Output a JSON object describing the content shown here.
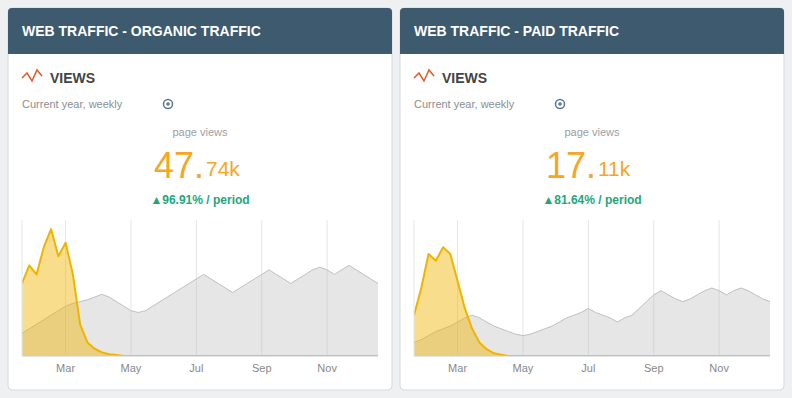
{
  "chart_data": [
    {
      "type": "area",
      "title": "WEB TRAFFIC - ORGANIC TRAFFIC",
      "subtitle": "VIEWS",
      "annotations": [
        "Current year, weekly",
        "page views",
        "47.",
        "74k",
        "▲96.91% / period"
      ],
      "categories": [
        null,
        null,
        null,
        null,
        null,
        null,
        "Mar",
        null,
        null,
        null,
        null,
        null,
        null,
        null,
        null,
        "May",
        null,
        null,
        null,
        null,
        null,
        null,
        null,
        null,
        "Jul",
        null,
        null,
        null,
        null,
        null,
        null,
        null,
        null,
        "Sep",
        null,
        null,
        null,
        null,
        null,
        null,
        null,
        null,
        "Nov",
        null,
        null,
        null,
        null,
        null,
        null,
        null
      ],
      "series": [
        {
          "color": "#c0c0c0",
          "values": [
            2.5,
            3.0,
            3.5,
            4.0,
            4.5,
            5.0,
            5.5,
            5.8,
            6.0,
            6.2,
            6.5,
            6.8,
            6.5,
            6.0,
            5.5,
            5.0,
            4.8,
            5.0,
            5.5,
            6.0,
            6.5,
            7.0,
            7.5,
            8.0,
            8.5,
            9.0,
            8.5,
            8.0,
            7.5,
            7.0,
            7.5,
            8.0,
            8.5,
            9.0,
            9.5,
            9.0,
            8.5,
            8.0,
            8.5,
            9.0,
            9.5,
            9.8,
            9.5,
            9.0,
            9.5,
            10.0,
            9.5,
            9.0,
            8.5,
            8.0
          ]
        },
        {
          "color": "#f0b400",
          "values": [
            8.0,
            10.0,
            9.0,
            12.0,
            14.0,
            11.0,
            12.5,
            9.0,
            3.5,
            1.5,
            0.8,
            0.4,
            0.2,
            0.1,
            0.0,
            0.0,
            0.0,
            0.0,
            0.0,
            0.0,
            0.0,
            0.0,
            0.0,
            0.0,
            0.0,
            0.0,
            0.0,
            0.0,
            0.0,
            0.0,
            0.0,
            0.0,
            0.0,
            0.0,
            0.0,
            0.0,
            0.0,
            0.0,
            0.0,
            0.0,
            0.0,
            0.0,
            0.0,
            0.0,
            0.0,
            0.0,
            0.0,
            0.0,
            0.0,
            0.0
          ]
        }
      ],
      "ylim": [
        0,
        15
      ],
      "grid": true,
      "tick_labels": "x"
    },
    {
      "type": "area",
      "title": "WEB TRAFFIC - PAID TRAFFIC",
      "subtitle": "VIEWS",
      "annotations": [
        "Current year, weekly",
        "page views",
        "17.",
        "11k",
        "▲81.64% / period"
      ],
      "categories": [
        null,
        null,
        null,
        null,
        null,
        null,
        "Mar",
        null,
        null,
        null,
        null,
        null,
        null,
        null,
        null,
        "May",
        null,
        null,
        null,
        null,
        null,
        null,
        null,
        null,
        "Jul",
        null,
        null,
        null,
        null,
        null,
        null,
        null,
        null,
        "Sep",
        null,
        null,
        null,
        null,
        null,
        null,
        null,
        null,
        "Nov",
        null,
        null,
        null,
        null,
        null,
        null,
        null
      ],
      "series": [
        {
          "color": "#c0c0c0",
          "values": [
            1.0,
            1.2,
            1.5,
            1.8,
            2.0,
            2.2,
            2.5,
            2.8,
            3.0,
            2.8,
            2.5,
            2.2,
            2.0,
            1.8,
            1.6,
            1.5,
            1.6,
            1.8,
            2.0,
            2.2,
            2.5,
            2.8,
            3.0,
            3.2,
            3.5,
            3.2,
            3.0,
            2.8,
            2.5,
            2.8,
            3.0,
            3.5,
            4.0,
            4.5,
            4.8,
            4.5,
            4.2,
            4.0,
            4.2,
            4.5,
            4.8,
            5.0,
            4.8,
            4.5,
            4.8,
            5.0,
            4.8,
            4.5,
            4.2,
            4.0
          ]
        },
        {
          "color": "#f0b400",
          "values": [
            3.0,
            5.0,
            7.5,
            7.0,
            8.0,
            7.5,
            5.5,
            3.5,
            2.0,
            1.0,
            0.5,
            0.2,
            0.1,
            0.0,
            0.0,
            0.0,
            0.0,
            0.0,
            0.0,
            0.0,
            0.0,
            0.0,
            0.0,
            0.0,
            0.0,
            0.0,
            0.0,
            0.0,
            0.0,
            0.0,
            0.0,
            0.0,
            0.0,
            0.0,
            0.0,
            0.0,
            0.0,
            0.0,
            0.0,
            0.0,
            0.0,
            0.0,
            0.0,
            0.0,
            0.0,
            0.0,
            0.0,
            0.0,
            0.0,
            0.0
          ]
        }
      ],
      "ylim": [
        0,
        10
      ],
      "grid": true,
      "tick_labels": "x"
    }
  ]
}
